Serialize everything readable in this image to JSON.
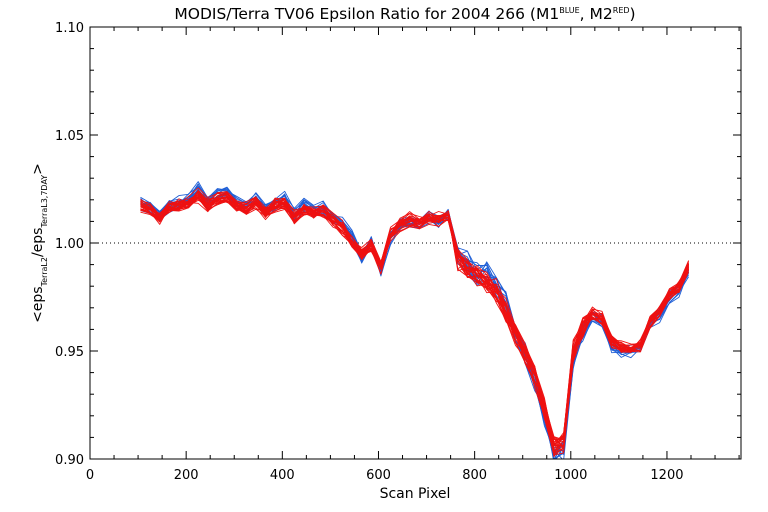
{
  "chart_data": {
    "type": "line",
    "title": {
      "prefix": "MODIS/Terra TV06 Epsilon Ratio for 2004 266 (M1",
      "sup1": "BLUE",
      "mid": ", M2",
      "sup2": "RED",
      "suffix": ")"
    },
    "xlabel": "Scan Pixel",
    "ylabel": {
      "open": "<eps",
      "sub1": "TerraL2",
      "slash": "/eps",
      "sub2": "TerraL3,7DAY",
      "close": ">"
    },
    "xlim": [
      0,
      1354
    ],
    "ylim": [
      0.9,
      1.1
    ],
    "xticks": [
      "0",
      "200",
      "400",
      "600",
      "800",
      "1000",
      "1200"
    ],
    "yticks": [
      "0.90",
      "0.95",
      "1.00",
      "1.05",
      "1.10"
    ],
    "reference_line": 1.0,
    "grid": false,
    "colors": {
      "M1": "#1f5fd6",
      "M2": "#ee1111"
    },
    "x": [
      105,
      125,
      145,
      165,
      185,
      205,
      225,
      245,
      265,
      285,
      305,
      325,
      345,
      365,
      385,
      405,
      425,
      445,
      465,
      485,
      505,
      525,
      545,
      565,
      585,
      605,
      625,
      645,
      665,
      685,
      705,
      725,
      745,
      765,
      785,
      805,
      825,
      845,
      865,
      885,
      905,
      925,
      945,
      965,
      985,
      1005,
      1025,
      1045,
      1065,
      1085,
      1105,
      1125,
      1145,
      1165,
      1185,
      1205,
      1225,
      1245
    ],
    "series": [
      {
        "name": "M1",
        "values": [
          1.018,
          1.017,
          1.012,
          1.018,
          1.019,
          1.02,
          1.025,
          1.019,
          1.022,
          1.024,
          1.019,
          1.017,
          1.02,
          1.015,
          1.019,
          1.021,
          1.013,
          1.018,
          1.015,
          1.017,
          1.012,
          1.009,
          1.003,
          0.993,
          1.001,
          0.987,
          1.003,
          1.008,
          1.01,
          1.009,
          1.012,
          1.01,
          1.014,
          0.995,
          0.991,
          0.986,
          0.986,
          0.981,
          0.973,
          0.959,
          0.949,
          0.936,
          0.921,
          0.902,
          0.905,
          0.947,
          0.959,
          0.966,
          0.964,
          0.952,
          0.95,
          0.95,
          0.952,
          0.963,
          0.967,
          0.975,
          0.978,
          0.987
        ]
      },
      {
        "name": "M2",
        "values": [
          1.018,
          1.016,
          1.012,
          1.017,
          1.018,
          1.019,
          1.022,
          1.018,
          1.021,
          1.022,
          1.018,
          1.016,
          1.019,
          1.014,
          1.018,
          1.019,
          1.012,
          1.016,
          1.014,
          1.015,
          1.011,
          1.007,
          1.001,
          0.995,
          0.999,
          0.989,
          1.004,
          1.009,
          1.011,
          1.01,
          1.012,
          1.011,
          1.013,
          0.993,
          0.989,
          0.985,
          0.983,
          0.978,
          0.969,
          0.958,
          0.949,
          0.939,
          0.924,
          0.906,
          0.908,
          0.95,
          0.962,
          0.968,
          0.965,
          0.955,
          0.952,
          0.951,
          0.953,
          0.964,
          0.969,
          0.977,
          0.98,
          0.99
        ]
      }
    ]
  }
}
